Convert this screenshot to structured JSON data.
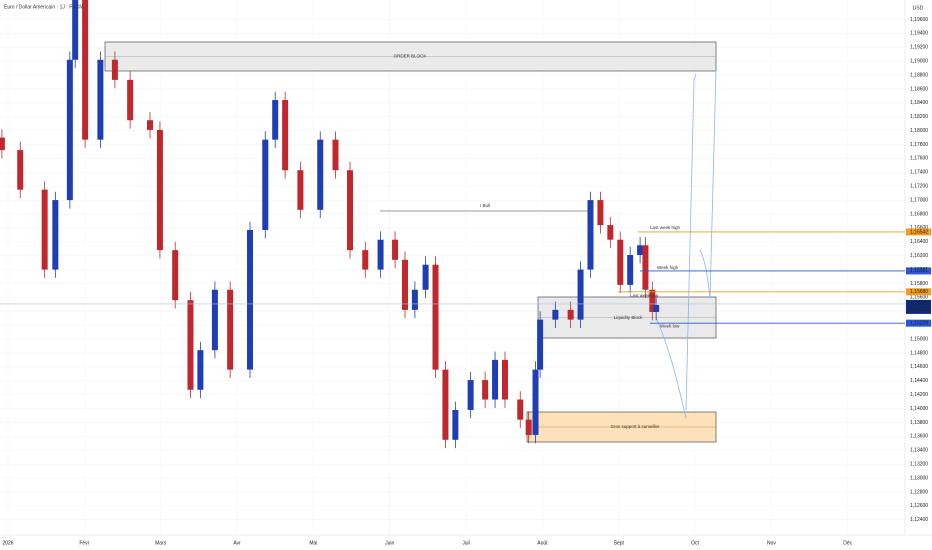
{
  "header": {
    "symbol": "Euro / Dollar Américain · 1J · FXCM",
    "currency": "USD",
    "countdown": "01:11:54"
  },
  "chart_data": {
    "type": "candlestick",
    "x": [
      -0.08,
      0.16,
      0.48,
      0.62,
      0.81,
      0.88,
      1.01,
      1.21,
      1.4,
      1.6,
      1.86,
      1.99,
      2.19,
      2.39,
      2.52,
      2.71,
      2.91,
      3.17,
      3.37,
      3.5,
      3.63,
      3.83,
      4.09,
      4.29,
      4.48,
      4.68,
      4.88,
      5.07,
      5.2,
      5.33,
      5.47,
      5.6,
      5.73,
      5.86,
      6.06,
      6.25,
      6.38,
      6.51,
      6.71,
      6.82,
      6.91,
      6.97,
      7.17,
      7.37,
      7.5,
      7.63,
      7.76,
      7.89,
      8.02,
      8.15,
      8.28,
      8.35,
      8.44,
      8.49
    ],
    "open": [
      1.179,
      1.1772,
      1.1715,
      1.16,
      1.17,
      1.1902,
      1.1988,
      1.1787,
      1.1902,
      1.1873,
      1.1815,
      1.1801,
      1.1628,
      1.1556,
      1.1427,
      1.1484,
      1.1571,
      1.1456,
      1.1657,
      1.1787,
      1.1844,
      1.1743,
      1.1686,
      1.1787,
      1.1743,
      1.1628,
      1.16,
      1.1643,
      1.1614,
      1.1542,
      1.1571,
      1.1607,
      1.1456,
      1.1355,
      1.1398,
      1.1441,
      1.1413,
      1.147,
      1.1413,
      1.1384,
      1.1362,
      1.1456,
      1.1528,
      1.1542,
      1.1528,
      1.16,
      1.17,
      1.1664,
      1.1643,
      1.1578,
      1.1621,
      1.1635,
      1.1571,
      1.1539
    ],
    "high": [
      1.1802,
      1.1784,
      1.1727,
      1.1712,
      1.1914,
      1.1988,
      1.1988,
      1.1914,
      1.1914,
      1.1885,
      1.1827,
      1.1813,
      1.164,
      1.1568,
      1.1496,
      1.1583,
      1.1583,
      1.1669,
      1.1799,
      1.1856,
      1.1856,
      1.1755,
      1.1799,
      1.1799,
      1.1755,
      1.164,
      1.1655,
      1.1655,
      1.1626,
      1.1583,
      1.1619,
      1.1619,
      1.1468,
      1.141,
      1.1453,
      1.1453,
      1.1482,
      1.1482,
      1.1425,
      1.1396,
      1.1468,
      1.154,
      1.1554,
      1.1554,
      1.1612,
      1.1712,
      1.1712,
      1.1676,
      1.1655,
      1.1633,
      1.1647,
      1.1647,
      1.1583,
      1.1561
    ],
    "low": [
      1.176,
      1.1703,
      1.1588,
      1.1588,
      1.1688,
      1.189,
      1.1775,
      1.1775,
      1.1861,
      1.1803,
      1.1789,
      1.1616,
      1.1544,
      1.1415,
      1.1415,
      1.1472,
      1.1444,
      1.1444,
      1.1645,
      1.1775,
      1.1731,
      1.1674,
      1.1674,
      1.1731,
      1.1616,
      1.1588,
      1.1588,
      1.1602,
      1.153,
      1.153,
      1.1559,
      1.1444,
      1.1343,
      1.1343,
      1.1386,
      1.1401,
      1.1401,
      1.1401,
      1.1372,
      1.135,
      1.135,
      1.1444,
      1.1516,
      1.1516,
      1.1516,
      1.1588,
      1.1652,
      1.1631,
      1.1566,
      1.1566,
      1.1609,
      1.1559,
      1.1527,
      1.1527
    ],
    "close": [
      1.1772,
      1.1715,
      1.16,
      1.17,
      1.1902,
      1.1988,
      1.1787,
      1.1902,
      1.1873,
      1.1815,
      1.1801,
      1.1628,
      1.1556,
      1.1427,
      1.1484,
      1.1571,
      1.1456,
      1.1657,
      1.1787,
      1.1844,
      1.1743,
      1.1686,
      1.1787,
      1.1743,
      1.1628,
      1.16,
      1.1643,
      1.1614,
      1.1542,
      1.1571,
      1.1607,
      1.1456,
      1.1355,
      1.1398,
      1.1441,
      1.1413,
      1.147,
      1.1413,
      1.1384,
      1.1362,
      1.1456,
      1.1528,
      1.1542,
      1.1528,
      1.16,
      1.17,
      1.1664,
      1.1643,
      1.1578,
      1.1621,
      1.1635,
      1.1571,
      1.1539,
      1.1549
    ],
    "up_color": "#1e3fb4",
    "down_color": "#c0282d",
    "xlim": [
      -0.105,
      11.75
    ],
    "xticks": [
      {
        "value": 0,
        "label": "2026"
      },
      {
        "value": 1,
        "label": "Févr"
      },
      {
        "value": 2,
        "label": "Mars"
      },
      {
        "value": 3,
        "label": "Avr"
      },
      {
        "value": 4,
        "label": "Mai"
      },
      {
        "value": 5,
        "label": "Juin"
      },
      {
        "value": 6,
        "label": "Juil"
      },
      {
        "value": 7,
        "label": "Août"
      },
      {
        "value": 8,
        "label": "Sept"
      },
      {
        "value": 9,
        "label": "Oct"
      },
      {
        "value": 10,
        "label": "Nov"
      },
      {
        "value": 11,
        "label": "Déc"
      }
    ],
    "ylim": [
      1.1218,
      1.1988
    ],
    "yticks": [
      {
        "value": 1.196,
        "label": "1,19600"
      },
      {
        "value": 1.194,
        "label": "1,19400"
      },
      {
        "value": 1.192,
        "label": "1,19200"
      },
      {
        "value": 1.19,
        "label": "1,19000"
      },
      {
        "value": 1.188,
        "label": "1,18800"
      },
      {
        "value": 1.186,
        "label": "1,18600"
      },
      {
        "value": 1.184,
        "label": "1,18400"
      },
      {
        "value": 1.182,
        "label": "1,18200"
      },
      {
        "value": 1.18,
        "label": "1,18000"
      },
      {
        "value": 1.178,
        "label": "1,17800"
      },
      {
        "value": 1.176,
        "label": "1,17600"
      },
      {
        "value": 1.174,
        "label": "1,17400"
      },
      {
        "value": 1.172,
        "label": "1,17200"
      },
      {
        "value": 1.17,
        "label": "1,17000"
      },
      {
        "value": 1.168,
        "label": "1,16800"
      },
      {
        "value": 1.166,
        "label": "1,16600"
      },
      {
        "value": 1.164,
        "label": "1,16400"
      },
      {
        "value": 1.162,
        "label": "1,16200"
      },
      {
        "value": 1.16,
        "label": "1,16000"
      },
      {
        "value": 1.158,
        "label": "1,15800"
      },
      {
        "value": 1.156,
        "label": "1,15600"
      },
      {
        "value": 1.154,
        "label": "1,15400"
      },
      {
        "value": 1.152,
        "label": "1,15200"
      },
      {
        "value": 1.15,
        "label": "1,15000"
      },
      {
        "value": 1.148,
        "label": "1,14800"
      },
      {
        "value": 1.146,
        "label": "1,14600"
      },
      {
        "value": 1.144,
        "label": "1,14400"
      },
      {
        "value": 1.142,
        "label": "1,14200"
      },
      {
        "value": 1.14,
        "label": "1,14000"
      },
      {
        "value": 1.138,
        "label": "1,13800"
      },
      {
        "value": 1.136,
        "label": "1,13600"
      },
      {
        "value": 1.134,
        "label": "1,13400"
      },
      {
        "value": 1.132,
        "label": "1,13200"
      },
      {
        "value": 1.13,
        "label": "1,13000"
      },
      {
        "value": 1.128,
        "label": "1,12800"
      },
      {
        "value": 1.126,
        "label": "1,12600"
      },
      {
        "value": 1.124,
        "label": "1,12400"
      }
    ],
    "levels": [
      {
        "name": "Last week high",
        "value": 1.16542,
        "label": "1,16542",
        "color": "#f29b1d"
      },
      {
        "name": "Week high",
        "value": 1.15981,
        "label": "1,15981",
        "color": "#2a56d8"
      },
      {
        "name": "Last week low",
        "value": 1.1568,
        "label": "1,15680",
        "color": "#f29b1d"
      },
      {
        "name": "Week low",
        "value": 1.15229,
        "label": "1,15229",
        "color": "#2a56d8"
      }
    ],
    "current_price": {
      "value": 1.15506,
      "label": "1,15506"
    },
    "annotations": {
      "order_block": "ORDER BLOCK",
      "bull": "I Bull",
      "liquidity_block": "Liquidity Block",
      "support": "Gros support à surveiller"
    }
  }
}
